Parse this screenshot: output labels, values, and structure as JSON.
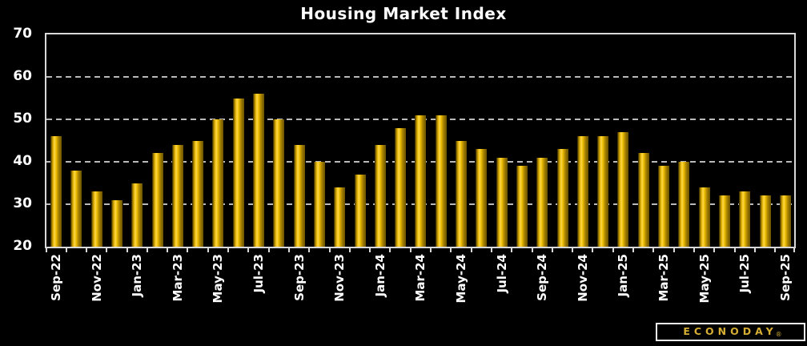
{
  "title": "Housing Market Index",
  "branding": {
    "logo_text": "ECONODAY",
    "registered_mark": "®"
  },
  "colors": {
    "background": "#000000",
    "text": "#ffffff",
    "axis_border": "#d9d9d9",
    "gridline": "#b9b9b9",
    "bar_gold_bright": "#ffd84e",
    "bar_gold_mid": "#f0c000",
    "bar_gold_dark": "#6b5300",
    "logo_gold": "#d6ae34"
  },
  "chart_data": {
    "type": "bar",
    "title": "Housing Market Index",
    "categories": [
      "Sep-22",
      "Oct-22",
      "Nov-22",
      "Dec-22",
      "Jan-23",
      "Feb-23",
      "Mar-23",
      "Apr-23",
      "May-23",
      "Jun-23",
      "Jul-23",
      "Aug-23",
      "Sep-23",
      "Oct-23",
      "Nov-23",
      "Dec-23",
      "Jan-24",
      "Feb-24",
      "Mar-24",
      "Apr-24",
      "May-24",
      "Jun-24",
      "Jul-24",
      "Aug-24",
      "Sep-24",
      "Oct-24",
      "Nov-24",
      "Dec-24",
      "Jan-25",
      "Feb-25",
      "Mar-25",
      "Apr-25",
      "May-25",
      "Jun-25",
      "Jul-25",
      "Aug-25",
      "Sep-25"
    ],
    "values": [
      46,
      38,
      33,
      31,
      35,
      42,
      44,
      45,
      50,
      55,
      56,
      50,
      44,
      40,
      34,
      37,
      44,
      48,
      51,
      51,
      45,
      43,
      41,
      39,
      41,
      43,
      46,
      46,
      47,
      42,
      39,
      40,
      34,
      32,
      33,
      32,
      32
    ],
    "visible_x_tick_labels": [
      "Sep-22",
      "Nov-22",
      "Jan-23",
      "Mar-23",
      "May-23",
      "Jul-23",
      "Sep-23",
      "Nov-23",
      "Jan-24",
      "Mar-24",
      "May-24",
      "Jul-24",
      "Sep-24",
      "Nov-24",
      "Jan-25",
      "Mar-25",
      "May-25",
      "Jul-25",
      "Sep-25"
    ],
    "xlabel": "",
    "ylabel": "",
    "ylim": [
      20,
      70
    ],
    "y_ticks": [
      70,
      60,
      50,
      40,
      30,
      20
    ],
    "grid": "horizontal dashed lines at 30, 40, 50, 60",
    "legend": "none"
  }
}
